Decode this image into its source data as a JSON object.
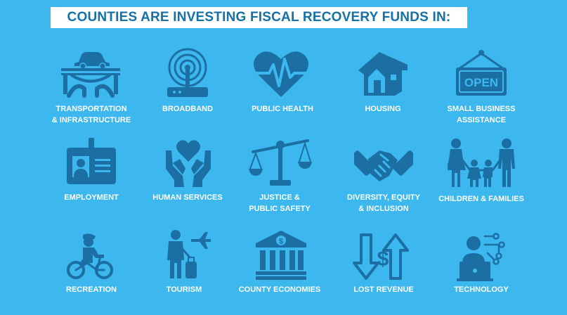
{
  "title": "COUNTIES ARE INVESTING FISCAL RECOVERY FUNDS IN:",
  "colors": {
    "background": "#3db8ef",
    "icon": "#1b6fa3",
    "title_text": "#1570a8",
    "label_text": "#ffffff"
  },
  "categories": [
    {
      "icon": "bridge-car-icon",
      "lines": [
        "TRANSPORTATION",
        "& INFRASTRUCTURE"
      ]
    },
    {
      "icon": "router-antenna-icon",
      "lines": [
        "BROADBAND"
      ]
    },
    {
      "icon": "heart-pulse-icon",
      "lines": [
        "PUBLIC HEALTH"
      ]
    },
    {
      "icon": "house-icon",
      "lines": [
        "HOUSING"
      ]
    },
    {
      "icon": "open-sign-icon",
      "sign_text": "OPEN",
      "lines": [
        "SMALL BUSINESS",
        "ASSISTANCE"
      ]
    },
    {
      "icon": "id-badge-icon",
      "lines": [
        "EMPLOYMENT"
      ]
    },
    {
      "icon": "hands-heart-icon",
      "lines": [
        "HUMAN SERVICES"
      ]
    },
    {
      "icon": "scales-icon",
      "lines": [
        "JUSTICE &",
        "PUBLIC SAFETY"
      ]
    },
    {
      "icon": "handshake-icon",
      "lines": [
        "DIVERSITY, EQUITY",
        "& INCLUSION"
      ]
    },
    {
      "icon": "family-icon",
      "lines": [
        "CHILDREN & FAMILIES"
      ]
    },
    {
      "icon": "cyclist-icon",
      "lines": [
        "RECREATION"
      ]
    },
    {
      "icon": "traveler-plane-icon",
      "lines": [
        "TOURISM"
      ]
    },
    {
      "icon": "bank-dollar-icon",
      "lines": [
        "COUNTY ECONOMIES"
      ]
    },
    {
      "icon": "arrows-dollar-icon",
      "lines": [
        "LOST REVENUE"
      ]
    },
    {
      "icon": "laptop-user-icon",
      "lines": [
        "TECHNOLOGY"
      ]
    }
  ]
}
